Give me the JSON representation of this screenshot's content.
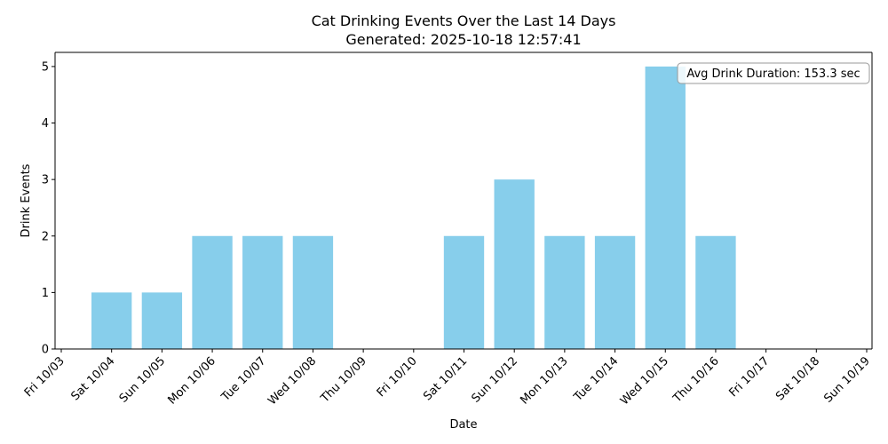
{
  "chart_data": {
    "type": "bar",
    "title": "Cat Drinking Events Over the Last 14 Days",
    "subtitle": "Generated: 2025-10-18 12:57:41",
    "xlabel": "Date",
    "ylabel": "Drink Events",
    "x_ticks": [
      "Fri 10/03",
      "Sat 10/04",
      "Sun 10/05",
      "Mon 10/06",
      "Tue 10/07",
      "Wed 10/08",
      "Thu 10/09",
      "Fri 10/10",
      "Sat 10/11",
      "Sun 10/12",
      "Mon 10/13",
      "Tue 10/14",
      "Wed 10/15",
      "Thu 10/16",
      "Fri 10/17",
      "Sat 10/18",
      "Sun 10/19"
    ],
    "categories": [
      "Sat 10/04",
      "Sun 10/05",
      "Mon 10/06",
      "Tue 10/07",
      "Wed 10/08",
      "Thu 10/09",
      "Fri 10/10",
      "Sat 10/11",
      "Sun 10/12",
      "Mon 10/13",
      "Tue 10/14",
      "Wed 10/15",
      "Thu 10/16",
      "Fri 10/17"
    ],
    "values": [
      1,
      1,
      2,
      2,
      2,
      0,
      0,
      2,
      3,
      2,
      2,
      5,
      2,
      0
    ],
    "y_ticks": [
      0,
      1,
      2,
      3,
      4,
      5
    ],
    "ylim": [
      0,
      5.25
    ],
    "bar_color": "#87CEEB",
    "grid": false,
    "annotation": {
      "text": "Avg Drink Duration: 153.3 sec",
      "placement": "top-right"
    }
  }
}
